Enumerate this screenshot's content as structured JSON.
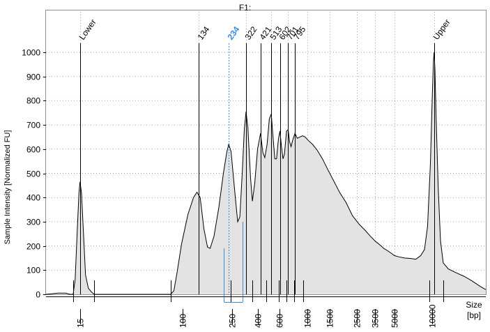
{
  "chart_data": {
    "type": "area",
    "title": "F1:",
    "xlabel": [
      "Size",
      "[bp]"
    ],
    "ylabel": "Sample Intensity [Normalized FU]",
    "ylim": [
      0,
      1000
    ],
    "yticks": [
      0,
      100,
      200,
      300,
      400,
      500,
      600,
      700,
      800,
      900,
      1000
    ],
    "xlim_log": [
      8,
      27000
    ],
    "x_tick_labels": [
      {
        "label": "15",
        "bp": 15
      },
      {
        "label": "100",
        "bp": 100
      },
      {
        "label": "250",
        "bp": 250
      },
      {
        "label": "400",
        "bp": 400
      },
      {
        "label": "600",
        "bp": 600
      },
      {
        "label": "1000",
        "bp": 1000
      },
      {
        "label": "1500",
        "bp": 1500
      },
      {
        "label": "2500",
        "bp": 2500
      },
      {
        "label": "3500",
        "bp": 3500
      },
      {
        "label": "5000",
        "bp": 5000
      },
      {
        "label": "10000",
        "bp": 10000
      }
    ],
    "grid": true,
    "peaks": [
      {
        "label": "Lower",
        "bp": 15,
        "fu": 465,
        "highlight": false
      },
      {
        "label": "134",
        "bp": 134,
        "fu": 420,
        "highlight": false
      },
      {
        "label": "234",
        "bp": 234,
        "fu": 620,
        "highlight": true
      },
      {
        "label": "322",
        "bp": 322,
        "fu": 755,
        "highlight": false
      },
      {
        "label": "421",
        "bp": 421,
        "fu": 665,
        "highlight": false
      },
      {
        "label": "513",
        "bp": 513,
        "fu": 745,
        "highlight": false
      },
      {
        "label": "602",
        "bp": 602,
        "fu": 675,
        "highlight": false
      },
      {
        "label": "701",
        "bp": 701,
        "fu": 680,
        "highlight": false
      },
      {
        "label": "795",
        "bp": 795,
        "fu": 665,
        "highlight": false
      },
      {
        "label": "Upper",
        "bp": 10380,
        "fu": 1000,
        "highlight": false
      }
    ],
    "trace": [
      [
        8,
        0
      ],
      [
        10,
        5
      ],
      [
        11.5,
        5
      ],
      [
        12.5,
        0
      ],
      [
        13.2,
        0
      ],
      [
        13.7,
        60
      ],
      [
        14.2,
        250
      ],
      [
        14.7,
        420
      ],
      [
        15,
        465
      ],
      [
        15.4,
        420
      ],
      [
        16,
        250
      ],
      [
        16.6,
        80
      ],
      [
        17.5,
        25
      ],
      [
        18.5,
        10
      ],
      [
        19.5,
        0
      ],
      [
        80,
        0
      ],
      [
        85,
        15
      ],
      [
        90,
        90
      ],
      [
        98,
        210
      ],
      [
        110,
        330
      ],
      [
        122,
        400
      ],
      [
        130,
        422
      ],
      [
        138,
        400
      ],
      [
        148,
        270
      ],
      [
        158,
        195
      ],
      [
        166,
        190
      ],
      [
        178,
        240
      ],
      [
        195,
        360
      ],
      [
        212,
        500
      ],
      [
        226,
        590
      ],
      [
        234,
        620
      ],
      [
        244,
        590
      ],
      [
        262,
        420
      ],
      [
        276,
        300
      ],
      [
        287,
        320
      ],
      [
        300,
        500
      ],
      [
        312,
        680
      ],
      [
        322,
        755
      ],
      [
        333,
        690
      ],
      [
        350,
        480
      ],
      [
        362,
        385
      ],
      [
        378,
        460
      ],
      [
        398,
        600
      ],
      [
        421,
        665
      ],
      [
        440,
        585
      ],
      [
        455,
        565
      ],
      [
        475,
        620
      ],
      [
        495,
        725
      ],
      [
        513,
        745
      ],
      [
        530,
        650
      ],
      [
        548,
        560
      ],
      [
        565,
        560
      ],
      [
        585,
        640
      ],
      [
        602,
        675
      ],
      [
        620,
        610
      ],
      [
        637,
        560
      ],
      [
        655,
        580
      ],
      [
        680,
        675
      ],
      [
        701,
        680
      ],
      [
        720,
        630
      ],
      [
        740,
        610
      ],
      [
        765,
        640
      ],
      [
        795,
        665
      ],
      [
        830,
        645
      ],
      [
        870,
        650
      ],
      [
        915,
        655
      ],
      [
        960,
        650
      ],
      [
        1020,
        635
      ],
      [
        1100,
        620
      ],
      [
        1200,
        595
      ],
      [
        1320,
        560
      ],
      [
        1460,
        515
      ],
      [
        1620,
        470
      ],
      [
        1820,
        420
      ],
      [
        2040,
        380
      ],
      [
        2300,
        325
      ],
      [
        2600,
        290
      ],
      [
        2900,
        265
      ],
      [
        3200,
        240
      ],
      [
        3500,
        220
      ],
      [
        3800,
        205
      ],
      [
        4100,
        190
      ],
      [
        4400,
        180
      ],
      [
        4700,
        170
      ],
      [
        5000,
        160
      ],
      [
        5400,
        155
      ],
      [
        6000,
        150
      ],
      [
        6800,
        148
      ],
      [
        7400,
        145
      ],
      [
        8100,
        160
      ],
      [
        8700,
        185
      ],
      [
        9200,
        280
      ],
      [
        9700,
        540
      ],
      [
        10050,
        820
      ],
      [
        10250,
        960
      ],
      [
        10380,
        1000
      ],
      [
        10550,
        930
      ],
      [
        10800,
        720
      ],
      [
        11200,
        440
      ],
      [
        11700,
        220
      ],
      [
        12300,
        130
      ],
      [
        13500,
        105
      ],
      [
        15500,
        90
      ],
      [
        18000,
        75
      ],
      [
        21000,
        55
      ],
      [
        24000,
        35
      ],
      [
        26500,
        22
      ],
      [
        27000,
        20
      ]
    ],
    "integration_regions_bp": [
      [
        13.2,
        19.5
      ],
      [
        80,
        244
      ],
      [
        244,
        362
      ],
      [
        362,
        468
      ],
      [
        468,
        586
      ],
      [
        586,
        680
      ],
      [
        680,
        780
      ],
      [
        780,
        925
      ],
      [
        9500,
        12300
      ]
    ],
    "highlight_region_bp": [
      212,
      300
    ],
    "colors": {
      "fill": "#e3e3e3",
      "trace": "#000000",
      "highlight": "#3c8ad8",
      "grid": "#a0a0a0"
    }
  }
}
